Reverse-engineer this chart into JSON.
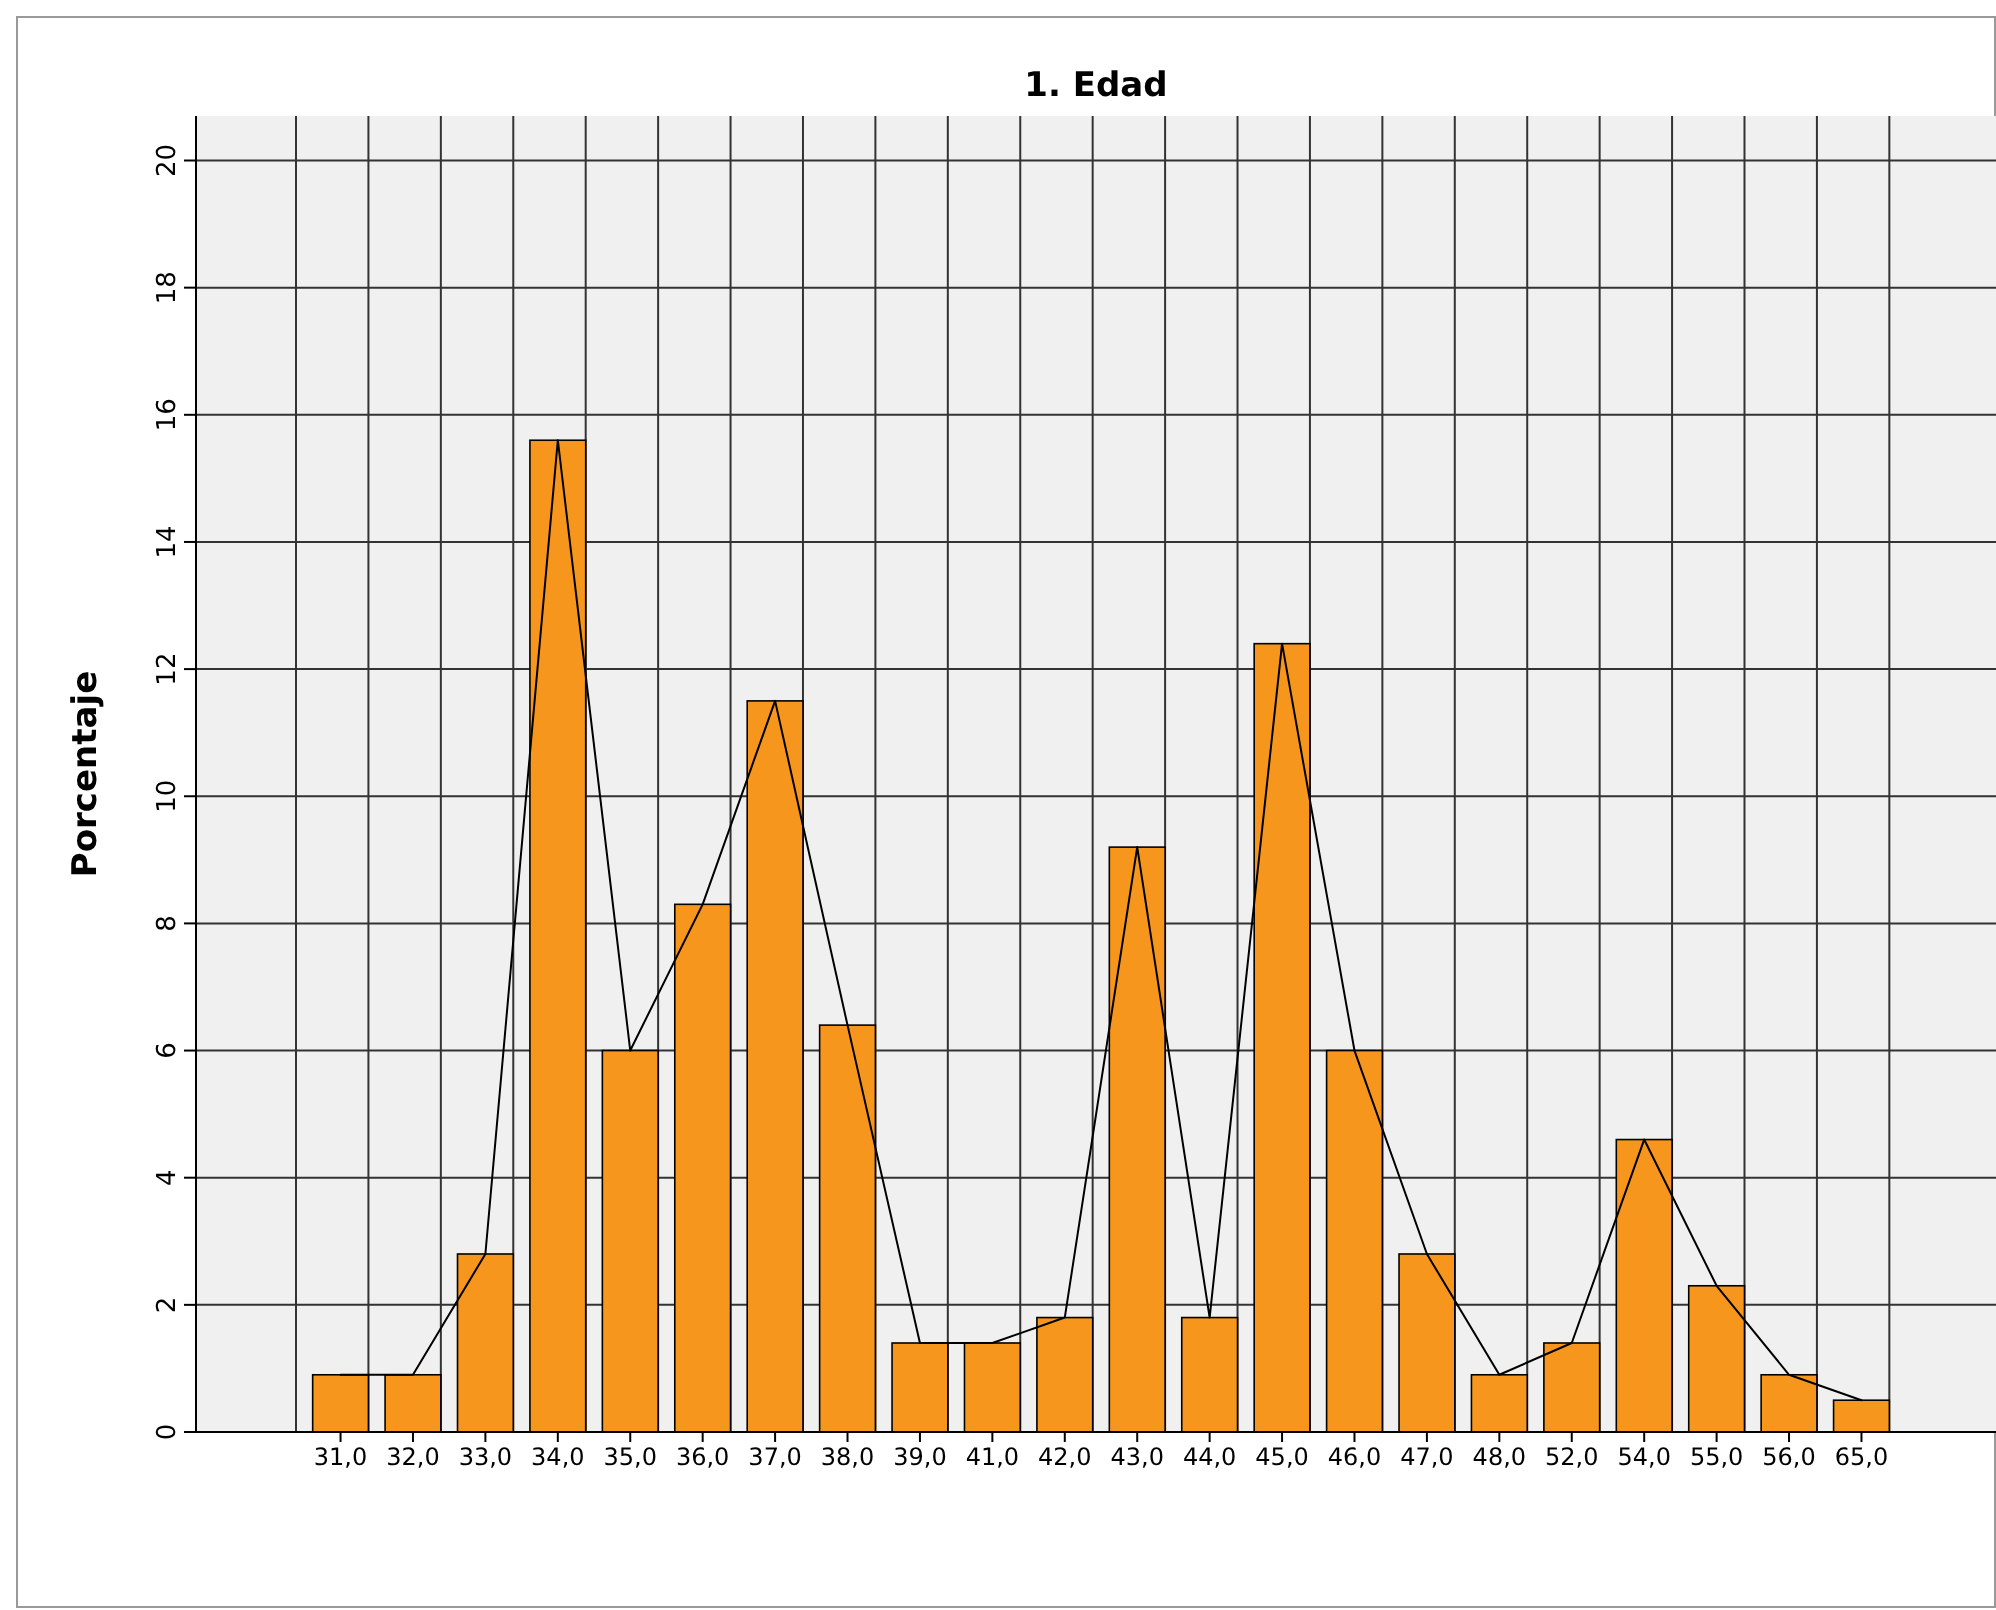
{
  "chart_data": {
    "type": "bar",
    "title": "1. Edad",
    "ylabel": "Porcentaje",
    "categories": [
      "31,0",
      "32,0",
      "33,0",
      "34,0",
      "35,0",
      "36,0",
      "37,0",
      "38,0",
      "39,0",
      "41,0",
      "42,0",
      "43,0",
      "44,0",
      "45,0",
      "46,0",
      "47,0",
      "48,0",
      "52,0",
      "54,0",
      "55,0",
      "56,0",
      "65,0"
    ],
    "series": [
      {
        "type": "bar",
        "color": "#f7961d",
        "values": [
          0.9,
          0.9,
          2.8,
          15.6,
          6.0,
          8.3,
          11.5,
          6.4,
          1.4,
          1.4,
          1.8,
          9.2,
          1.8,
          12.4,
          6.0,
          2.8,
          0.9,
          1.4,
          4.6,
          2.3,
          0.9,
          0.5
        ]
      },
      {
        "type": "line",
        "color": "#000000",
        "values": [
          0.9,
          0.9,
          2.8,
          15.6,
          6.0,
          8.3,
          11.5,
          6.4,
          1.4,
          1.4,
          1.8,
          9.2,
          1.8,
          12.4,
          6.0,
          2.8,
          0.9,
          1.4,
          4.6,
          2.3,
          0.9,
          0.5
        ]
      }
    ],
    "ylim": [
      0,
      20.7
    ],
    "yticks": [
      0,
      2,
      4,
      6,
      8,
      10,
      12,
      14,
      16,
      18,
      20
    ],
    "grid": true
  }
}
